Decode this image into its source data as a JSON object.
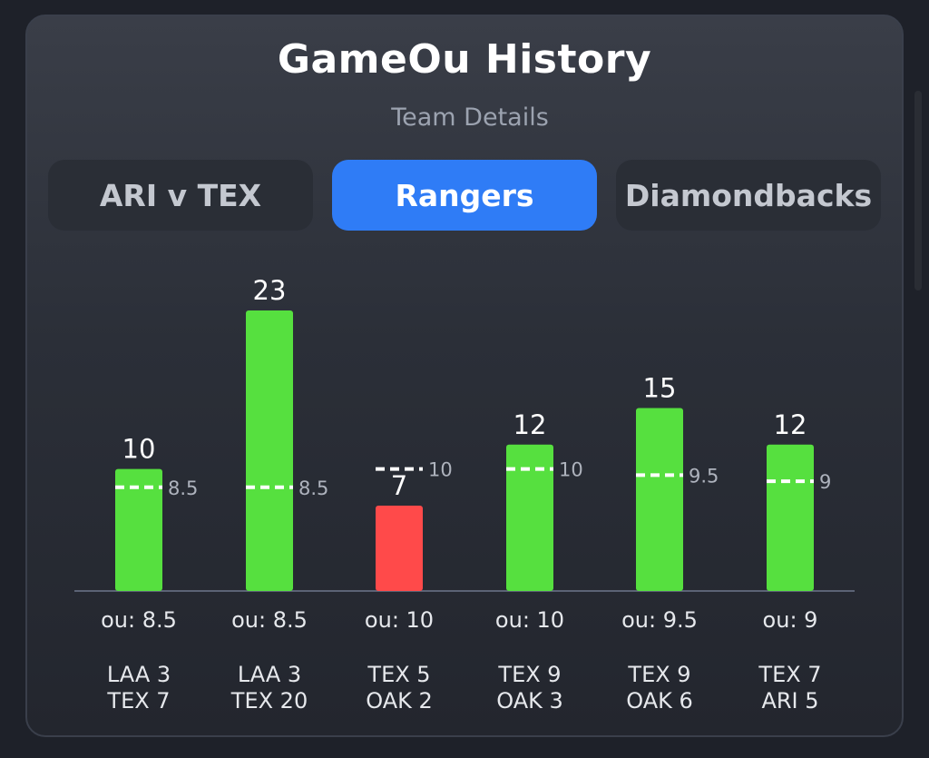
{
  "header": {
    "title": "GameOu History",
    "subtitle": "Team Details"
  },
  "tabs": [
    {
      "label": "ARI v TEX",
      "active": false
    },
    {
      "label": "Rangers",
      "active": true
    },
    {
      "label": "Diamondbacks",
      "active": false
    }
  ],
  "colors": {
    "over": "#56e03f",
    "under": "#ff4a4a",
    "accent": "#2f7cf6"
  },
  "chart_data": {
    "type": "bar",
    "categories": [
      "LAA 3 TEX 7",
      "LAA 3 TEX 20",
      "TEX 5 OAK 2",
      "TEX 9 OAK 3",
      "TEX 9 OAK 6",
      "TEX 7 ARI 5"
    ],
    "values": [
      10,
      23,
      7,
      12,
      15,
      12
    ],
    "lines": [
      8.5,
      8.5,
      10,
      10,
      9.5,
      9
    ],
    "ou_labels": [
      "ou: 8.5",
      "ou: 8.5",
      "ou: 10",
      "ou: 10",
      "ou: 9.5",
      "ou: 9"
    ],
    "games": [
      [
        "LAA 3",
        "TEX 7"
      ],
      [
        "LAA 3",
        "TEX 20"
      ],
      [
        "TEX 5",
        "OAK 2"
      ],
      [
        "TEX 9",
        "OAK 3"
      ],
      [
        "TEX 9",
        "OAK 6"
      ],
      [
        "TEX 7",
        "ARI 5"
      ]
    ],
    "ylim": [
      0,
      23
    ],
    "grid": false,
    "legend": "none"
  }
}
